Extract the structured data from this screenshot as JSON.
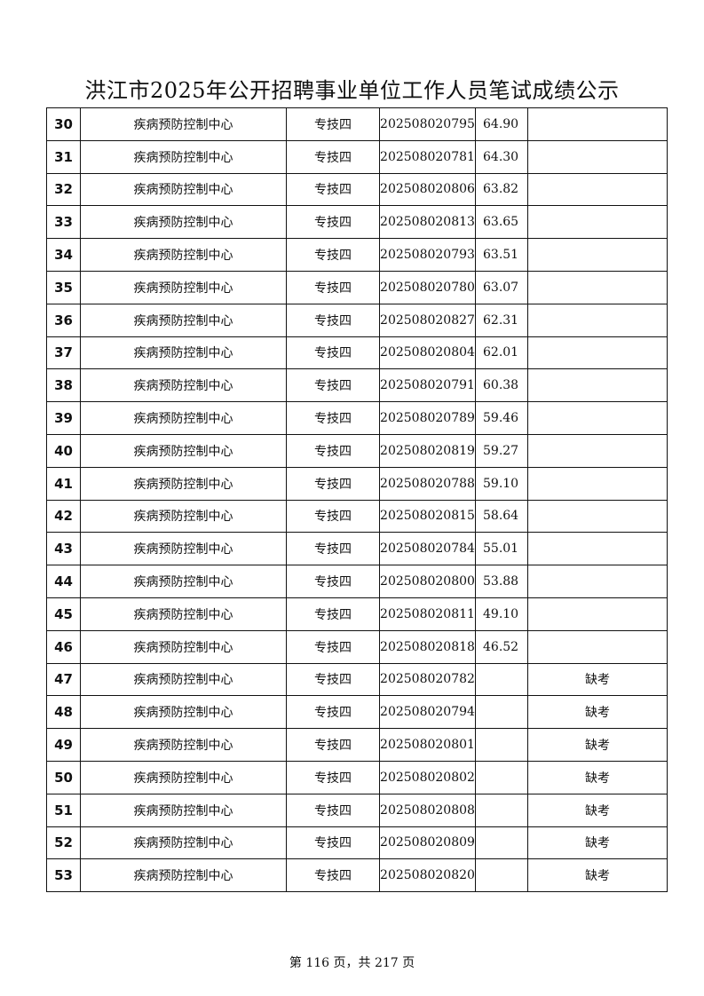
{
  "title": "洪江市2025年公开招聘事业单位工作人员笔试成绩公示",
  "rows": [
    {
      "no": "30",
      "unit": "疾病预防控制中心",
      "post": "专技四",
      "ticket": "202508020795",
      "score": "64.90",
      "note": ""
    },
    {
      "no": "31",
      "unit": "疾病预防控制中心",
      "post": "专技四",
      "ticket": "202508020781",
      "score": "64.30",
      "note": ""
    },
    {
      "no": "32",
      "unit": "疾病预防控制中心",
      "post": "专技四",
      "ticket": "202508020806",
      "score": "63.82",
      "note": ""
    },
    {
      "no": "33",
      "unit": "疾病预防控制中心",
      "post": "专技四",
      "ticket": "202508020813",
      "score": "63.65",
      "note": ""
    },
    {
      "no": "34",
      "unit": "疾病预防控制中心",
      "post": "专技四",
      "ticket": "202508020793",
      "score": "63.51",
      "note": ""
    },
    {
      "no": "35",
      "unit": "疾病预防控制中心",
      "post": "专技四",
      "ticket": "202508020780",
      "score": "63.07",
      "note": ""
    },
    {
      "no": "36",
      "unit": "疾病预防控制中心",
      "post": "专技四",
      "ticket": "202508020827",
      "score": "62.31",
      "note": ""
    },
    {
      "no": "37",
      "unit": "疾病预防控制中心",
      "post": "专技四",
      "ticket": "202508020804",
      "score": "62.01",
      "note": ""
    },
    {
      "no": "38",
      "unit": "疾病预防控制中心",
      "post": "专技四",
      "ticket": "202508020791",
      "score": "60.38",
      "note": ""
    },
    {
      "no": "39",
      "unit": "疾病预防控制中心",
      "post": "专技四",
      "ticket": "202508020789",
      "score": "59.46",
      "note": ""
    },
    {
      "no": "40",
      "unit": "疾病预防控制中心",
      "post": "专技四",
      "ticket": "202508020819",
      "score": "59.27",
      "note": ""
    },
    {
      "no": "41",
      "unit": "疾病预防控制中心",
      "post": "专技四",
      "ticket": "202508020788",
      "score": "59.10",
      "note": ""
    },
    {
      "no": "42",
      "unit": "疾病预防控制中心",
      "post": "专技四",
      "ticket": "202508020815",
      "score": "58.64",
      "note": ""
    },
    {
      "no": "43",
      "unit": "疾病预防控制中心",
      "post": "专技四",
      "ticket": "202508020784",
      "score": "55.01",
      "note": ""
    },
    {
      "no": "44",
      "unit": "疾病预防控制中心",
      "post": "专技四",
      "ticket": "202508020800",
      "score": "53.88",
      "note": ""
    },
    {
      "no": "45",
      "unit": "疾病预防控制中心",
      "post": "专技四",
      "ticket": "202508020811",
      "score": "49.10",
      "note": ""
    },
    {
      "no": "46",
      "unit": "疾病预防控制中心",
      "post": "专技四",
      "ticket": "202508020818",
      "score": "46.52",
      "note": ""
    },
    {
      "no": "47",
      "unit": "疾病预防控制中心",
      "post": "专技四",
      "ticket": "202508020782",
      "score": "",
      "note": "缺考"
    },
    {
      "no": "48",
      "unit": "疾病预防控制中心",
      "post": "专技四",
      "ticket": "202508020794",
      "score": "",
      "note": "缺考"
    },
    {
      "no": "49",
      "unit": "疾病预防控制中心",
      "post": "专技四",
      "ticket": "202508020801",
      "score": "",
      "note": "缺考"
    },
    {
      "no": "50",
      "unit": "疾病预防控制中心",
      "post": "专技四",
      "ticket": "202508020802",
      "score": "",
      "note": "缺考"
    },
    {
      "no": "51",
      "unit": "疾病预防控制中心",
      "post": "专技四",
      "ticket": "202508020808",
      "score": "",
      "note": "缺考"
    },
    {
      "no": "52",
      "unit": "疾病预防控制中心",
      "post": "专技四",
      "ticket": "202508020809",
      "score": "",
      "note": "缺考"
    },
    {
      "no": "53",
      "unit": "疾病预防控制中心",
      "post": "专技四",
      "ticket": "202508020820",
      "score": "",
      "note": "缺考"
    }
  ],
  "footer": "第 116 页，共 217 页"
}
